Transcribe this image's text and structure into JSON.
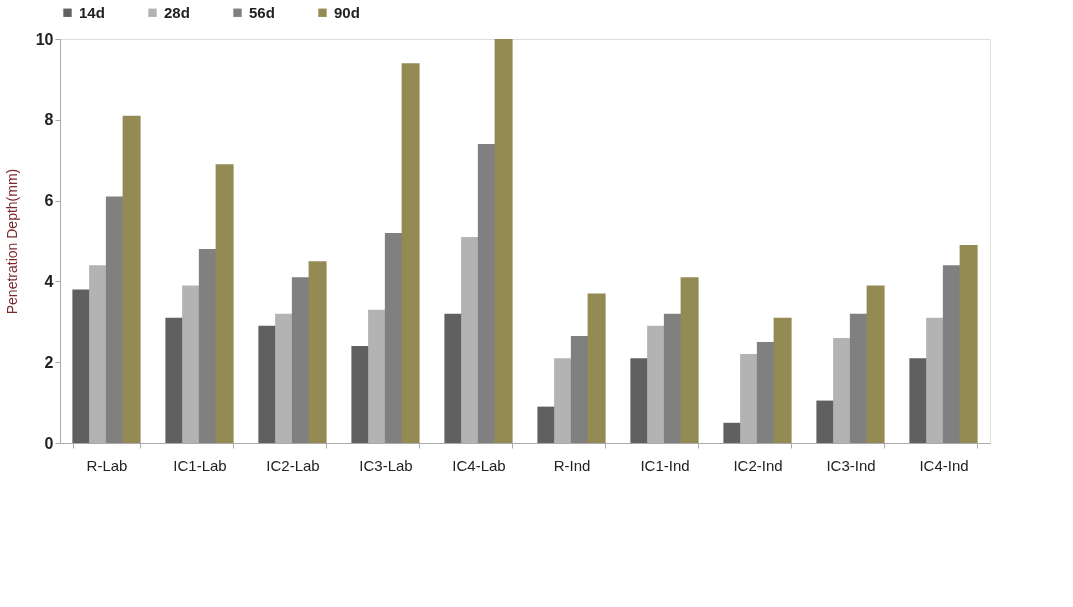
{
  "chart_data": {
    "type": "bar",
    "ylabel": "Penetration Depth(mm)",
    "categories": [
      "R-Lab",
      "IC1-Lab",
      "IC2-Lab",
      "IC3-Lab",
      "IC4-Lab",
      "R-Ind",
      "IC1-Ind",
      "IC2-Ind",
      "IC3-Ind",
      "IC4-Ind"
    ],
    "series": [
      {
        "name": "14d",
        "color": "#606060",
        "values": [
          3.8,
          3.1,
          2.9,
          2.4,
          3.2,
          0.9,
          2.1,
          0.5,
          1.05,
          2.1
        ]
      },
      {
        "name": "28d",
        "color": "#b3b3b3",
        "values": [
          4.4,
          3.9,
          3.2,
          3.3,
          5.1,
          2.1,
          2.9,
          2.2,
          2.6,
          3.1
        ]
      },
      {
        "name": "56d",
        "color": "#808080",
        "values": [
          6.1,
          4.8,
          4.1,
          5.2,
          7.4,
          2.65,
          3.2,
          2.5,
          3.2,
          4.4
        ]
      },
      {
        "name": "90d",
        "color": "#948a54",
        "values": [
          8.1,
          6.9,
          4.5,
          9.4,
          10.0,
          3.7,
          4.1,
          3.1,
          3.9,
          4.9
        ]
      }
    ],
    "ylim": [
      0,
      10
    ],
    "yticks": [
      0,
      2,
      4,
      6,
      8,
      10
    ],
    "grid": false,
    "legend": "top"
  }
}
